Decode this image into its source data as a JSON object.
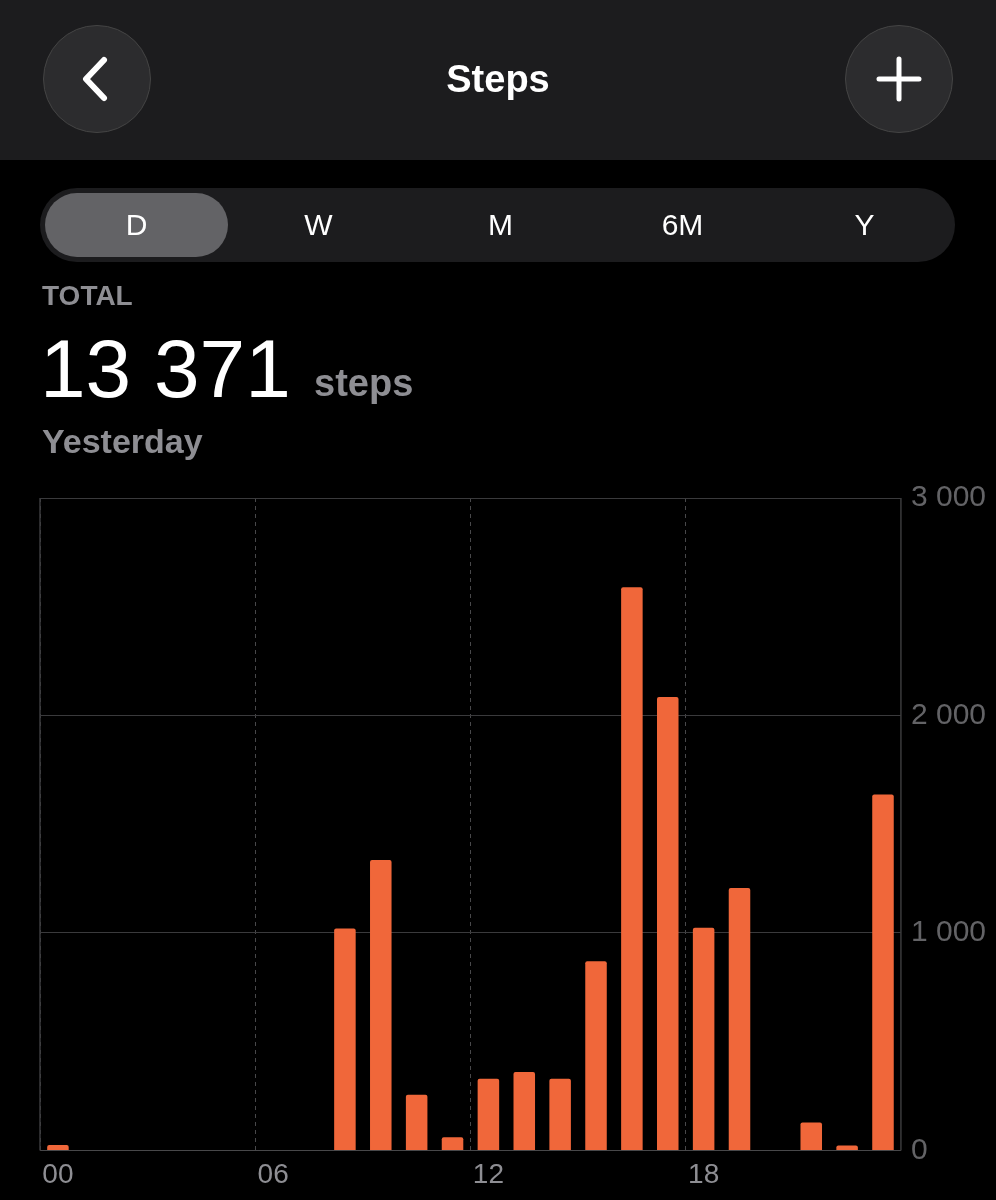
{
  "chart_data": {
    "type": "bar",
    "title": "Steps",
    "subtitle": "Yesterday",
    "annotations": [
      "D",
      "W",
      "M",
      "6M",
      "Y",
      "TOTAL",
      "13 371",
      "steps"
    ],
    "categories": [
      "00",
      null,
      null,
      null,
      null,
      null,
      "06",
      null,
      null,
      null,
      null,
      null,
      "12",
      null,
      null,
      null,
      null,
      null,
      "18",
      null,
      null,
      null,
      null,
      null
    ],
    "values": [
      25,
      null,
      null,
      null,
      null,
      null,
      null,
      null,
      1020,
      1335,
      256,
      60,
      330,
      360,
      330,
      870,
      2590,
      2085,
      1024,
      1207,
      null,
      128,
      23,
      1637
    ],
    "color": "#f0673a",
    "ylim": [
      0,
      3000
    ],
    "yticks": [
      {
        "value": 0,
        "label": "0"
      },
      {
        "value": 1000,
        "label": "1 000"
      },
      {
        "value": 2000,
        "label": "2 000"
      },
      {
        "value": 3000,
        "label": "3 000"
      }
    ],
    "grid": true,
    "legend": false
  }
}
